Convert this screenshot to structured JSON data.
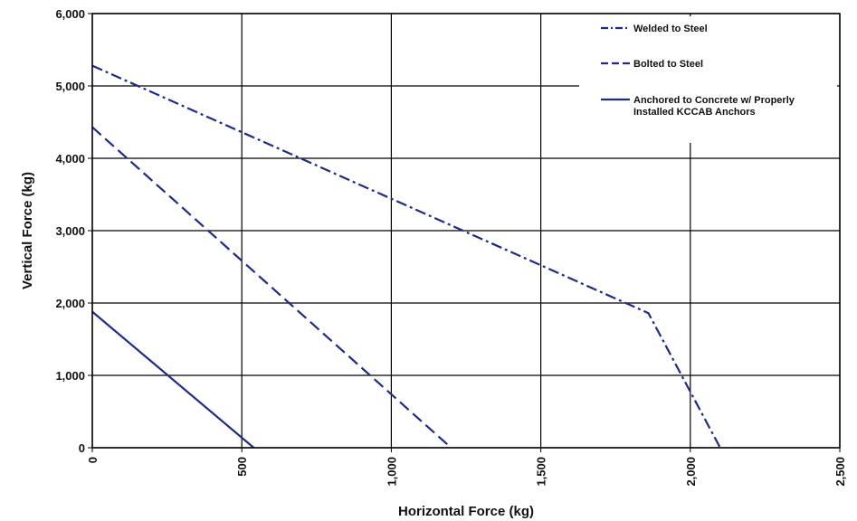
{
  "chart_data": {
    "type": "line",
    "xlabel": "Horizontal Force (kg)",
    "ylabel": "Vertical Force (kg)",
    "xlim": [
      0,
      2500
    ],
    "ylim": [
      0,
      6000
    ],
    "x_ticks": [
      0,
      500,
      1000,
      1500,
      2000,
      2500
    ],
    "x_tick_labels": [
      "0",
      "500",
      "1,000",
      "1,500",
      "2,000",
      "2,500"
    ],
    "y_ticks": [
      0,
      1000,
      2000,
      3000,
      4000,
      5000,
      6000
    ],
    "y_tick_labels": [
      "0",
      "1,000",
      "2,000",
      "3,000",
      "4,000",
      "5,000",
      "6,000"
    ],
    "grid": true,
    "legend_position": "top-right",
    "series": [
      {
        "name": "Welded to Steel",
        "color": "#1f2a8c",
        "dash": "dash-dot",
        "points": [
          [
            0,
            5280
          ],
          [
            1860,
            1860
          ],
          [
            2100,
            0
          ]
        ]
      },
      {
        "name": "Bolted to Steel",
        "color": "#1f2a8c",
        "dash": "dashed",
        "points": [
          [
            0,
            4430
          ],
          [
            1200,
            0
          ]
        ]
      },
      {
        "name": "Anchored to Concrete  w/ Properly Installed KCCAB Anchors",
        "legend_lines": [
          "Anchored to Concrete  w/ Properly",
          "Installed KCCAB Anchors"
        ],
        "color": "#1f2a8c",
        "dash": "solid",
        "points": [
          [
            0,
            1880
          ],
          [
            540,
            0
          ]
        ]
      }
    ]
  }
}
